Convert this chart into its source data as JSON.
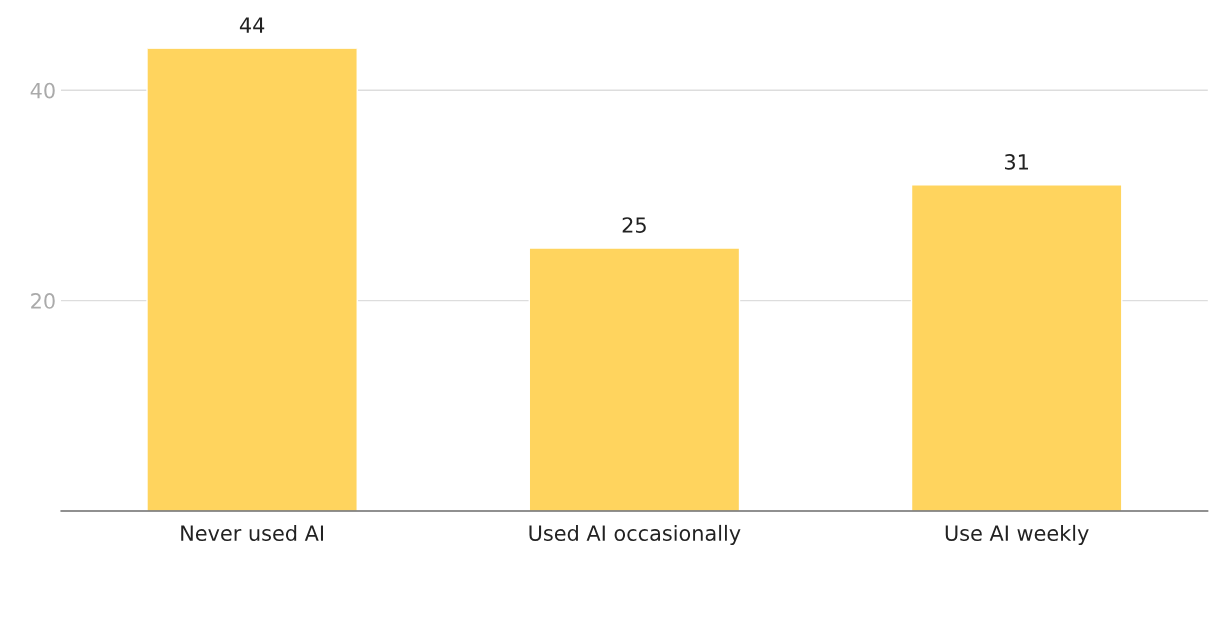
{
  "chart_data": {
    "type": "bar",
    "categories": [
      "Never used AI",
      "Used AI occasionally",
      "Use AI weekly"
    ],
    "values": [
      44,
      25,
      31
    ],
    "color": "#ffd45e",
    "ylim": [
      0,
      44
    ],
    "yticks": [
      20,
      40
    ],
    "grid": "y",
    "data_labels": true
  }
}
